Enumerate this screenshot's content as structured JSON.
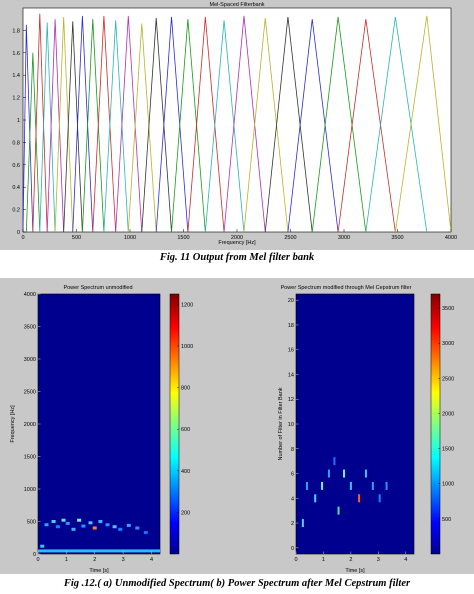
{
  "figure1": {
    "caption": "Fig. 11 Output from Mel filter bank",
    "chart_data": {
      "type": "line",
      "title": "Mel-Spaced Filterbank",
      "xlabel": "Frequency [Hz]",
      "ylabel": "",
      "xlim": [
        0,
        4000
      ],
      "ylim": [
        0,
        2
      ],
      "xticks": [
        "0",
        "500",
        "1000",
        "1500",
        "2000",
        "2500",
        "3000",
        "3500",
        "4000"
      ],
      "yticks": [
        "0",
        "0.2",
        "0.4",
        "0.6",
        "0.8",
        "1",
        "1.2",
        "1.4",
        "1.6",
        "1.8"
      ],
      "grid": false,
      "filters": [
        {
          "left": 0,
          "center": 31,
          "right": 92,
          "peak": 1.85,
          "color": "#2b2bd9"
        },
        {
          "left": 31,
          "center": 92,
          "right": 157,
          "peak": 1.6,
          "color": "#1a9a1a"
        },
        {
          "left": 92,
          "center": 157,
          "right": 226,
          "peak": 1.95,
          "color": "#cc2a2a"
        },
        {
          "left": 157,
          "center": 226,
          "right": 300,
          "peak": 1.87,
          "color": "#27b5b5"
        },
        {
          "left": 226,
          "center": 300,
          "right": 380,
          "peak": 1.9,
          "color": "#b030b0"
        },
        {
          "left": 300,
          "center": 380,
          "right": 465,
          "peak": 1.92,
          "color": "#b5b52b"
        },
        {
          "left": 380,
          "center": 465,
          "right": 555,
          "peak": 1.88,
          "color": "#333333"
        },
        {
          "left": 465,
          "center": 555,
          "right": 652,
          "peak": 1.93,
          "color": "#2b2bd9"
        },
        {
          "left": 555,
          "center": 652,
          "right": 756,
          "peak": 1.9,
          "color": "#1a9a1a"
        },
        {
          "left": 652,
          "center": 756,
          "right": 866,
          "peak": 1.93,
          "color": "#cc2a2a"
        },
        {
          "left": 756,
          "center": 866,
          "right": 984,
          "peak": 1.89,
          "color": "#27b5b5"
        },
        {
          "left": 866,
          "center": 984,
          "right": 1110,
          "peak": 1.93,
          "color": "#b030b0"
        },
        {
          "left": 984,
          "center": 1110,
          "right": 1245,
          "peak": 1.86,
          "color": "#b5b52b"
        },
        {
          "left": 1110,
          "center": 1245,
          "right": 1388,
          "peak": 1.91,
          "color": "#333333"
        },
        {
          "left": 1245,
          "center": 1388,
          "right": 1541,
          "peak": 1.92,
          "color": "#2b2bd9"
        },
        {
          "left": 1388,
          "center": 1541,
          "right": 1704,
          "peak": 1.9,
          "color": "#1a9a1a"
        },
        {
          "left": 1541,
          "center": 1704,
          "right": 1879,
          "peak": 1.92,
          "color": "#cc2a2a"
        },
        {
          "left": 1704,
          "center": 1879,
          "right": 2065,
          "peak": 1.89,
          "color": "#27b5b5"
        },
        {
          "left": 1879,
          "center": 2065,
          "right": 2264,
          "peak": 1.93,
          "color": "#b030b0"
        },
        {
          "left": 2065,
          "center": 2264,
          "right": 2476,
          "peak": 1.91,
          "color": "#b5b52b"
        },
        {
          "left": 2264,
          "center": 2476,
          "right": 2703,
          "peak": 1.92,
          "color": "#333333"
        },
        {
          "left": 2476,
          "center": 2703,
          "right": 2945,
          "peak": 1.9,
          "color": "#2b2bd9"
        },
        {
          "left": 2703,
          "center": 2945,
          "right": 3204,
          "peak": 1.92,
          "color": "#1a9a1a"
        },
        {
          "left": 2945,
          "center": 3204,
          "right": 3480,
          "peak": 1.9,
          "color": "#cc2a2a"
        },
        {
          "left": 3204,
          "center": 3480,
          "right": 3774,
          "peak": 1.92,
          "color": "#27b5b5"
        },
        {
          "left": 3480,
          "center": 3774,
          "right": 4000,
          "peak": 1.93,
          "color": "#b5b52b"
        }
      ]
    }
  },
  "figure2": {
    "caption": "Fig .12.( a) Unmodified Spectrum( b) Power Spectrum after Mel Cepstrum filter",
    "panel_a": {
      "chart_data": {
        "type": "heatmap",
        "title": "Power Spectrum unmodified",
        "xlabel": "Time [s]",
        "ylabel": "Frequency [Hz]",
        "xlim": [
          0,
          4.3
        ],
        "ylim": [
          0,
          4000
        ],
        "xticks": [
          "0",
          "1",
          "2",
          "3",
          "4"
        ],
        "yticks": [
          "0",
          "500",
          "1000",
          "1500",
          "2000",
          "2500",
          "3000",
          "3500",
          "4000"
        ],
        "colorbar_ticks": [
          "200",
          "400",
          "600",
          "800",
          "1000",
          "1200"
        ],
        "colorbar_range": [
          0,
          1250
        ],
        "background": "#00008f",
        "hot_spots": [
          {
            "t": 0.15,
            "f": 120,
            "c": "#40c0ff"
          },
          {
            "t": 0.3,
            "f": 450,
            "c": "#30a0ff"
          },
          {
            "t": 0.55,
            "f": 500,
            "c": "#50d0ff"
          },
          {
            "t": 0.7,
            "f": 420,
            "c": "#2080ff"
          },
          {
            "t": 0.9,
            "f": 520,
            "c": "#60e0ff"
          },
          {
            "t": 1.05,
            "f": 470,
            "c": "#3090ff"
          },
          {
            "t": 1.25,
            "f": 380,
            "c": "#40b0ff"
          },
          {
            "t": 1.45,
            "f": 520,
            "c": "#70f0ff"
          },
          {
            "t": 1.6,
            "f": 430,
            "c": "#3090ff"
          },
          {
            "t": 1.85,
            "f": 480,
            "c": "#50c0ff"
          },
          {
            "t": 2.0,
            "f": 400,
            "c": "#ff8030"
          },
          {
            "t": 2.2,
            "f": 500,
            "c": "#40b0ff"
          },
          {
            "t": 2.45,
            "f": 450,
            "c": "#3090ff"
          },
          {
            "t": 2.7,
            "f": 420,
            "c": "#50c0ff"
          },
          {
            "t": 2.9,
            "f": 380,
            "c": "#2080ff"
          },
          {
            "t": 3.2,
            "f": 440,
            "c": "#40a0ff"
          },
          {
            "t": 3.5,
            "f": 400,
            "c": "#3090ff"
          },
          {
            "t": 3.8,
            "f": 330,
            "c": "#2070ff"
          }
        ],
        "baseline_band": {
          "f": 40,
          "color": "#30d0ff"
        }
      }
    },
    "panel_b": {
      "chart_data": {
        "type": "heatmap",
        "title": "Power Spectrum modified through Mel Cepstrum filter",
        "xlabel": "Time [s]",
        "ylabel": "Number of Filter in Filter Bank",
        "xlim": [
          0,
          4.3
        ],
        "ylim": [
          -0.5,
          20.5
        ],
        "xticks": [
          "0",
          "1",
          "2",
          "3",
          "4"
        ],
        "yticks": [
          "0",
          "2",
          "4",
          "6",
          "8",
          "10",
          "12",
          "14",
          "16",
          "18",
          "20"
        ],
        "colorbar_ticks": [
          "500",
          "1000",
          "1500",
          "2000",
          "2500",
          "3000",
          "3500"
        ],
        "colorbar_range": [
          0,
          3700
        ],
        "background": "#00008f",
        "hot_spots": [
          {
            "t": 0.4,
            "f": 5,
            "c": "#30a0ff"
          },
          {
            "t": 0.7,
            "f": 4,
            "c": "#50d0ff"
          },
          {
            "t": 0.95,
            "f": 5,
            "c": "#70f0ff"
          },
          {
            "t": 1.2,
            "f": 6,
            "c": "#30a0ff"
          },
          {
            "t": 1.55,
            "f": 3,
            "c": "#50e0a0"
          },
          {
            "t": 1.75,
            "f": 6,
            "c": "#70f0ff"
          },
          {
            "t": 2.0,
            "f": 5,
            "c": "#40c0ff"
          },
          {
            "t": 2.3,
            "f": 4,
            "c": "#ff6020"
          },
          {
            "t": 2.55,
            "f": 6,
            "c": "#40c0ff"
          },
          {
            "t": 2.8,
            "f": 5,
            "c": "#30a0ff"
          },
          {
            "t": 3.05,
            "f": 4,
            "c": "#2080ff"
          },
          {
            "t": 3.3,
            "f": 5,
            "c": "#3090ff"
          },
          {
            "t": 0.25,
            "f": 2,
            "c": "#50d0ff"
          },
          {
            "t": 1.4,
            "f": 7,
            "c": "#2070ff"
          }
        ]
      }
    }
  }
}
